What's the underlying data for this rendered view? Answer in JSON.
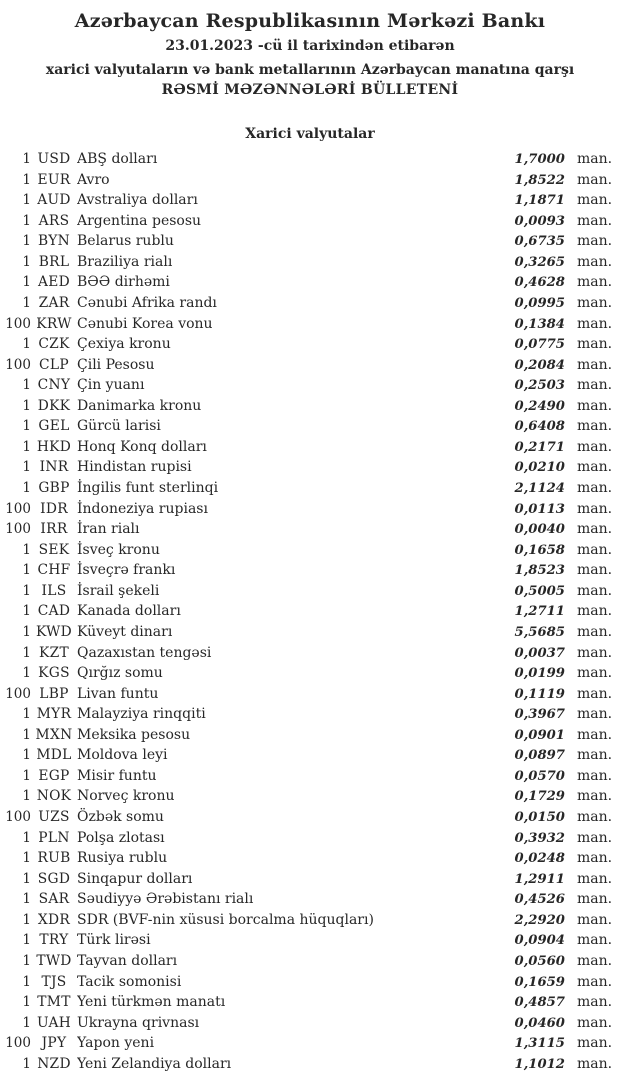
{
  "header": {
    "title": "Azərbaycan Respublikasının Mərkəzi Bankı",
    "date_line": "23.01.2023 -cü il tarixindən etibarən",
    "subtitle_line1": "xarici valyutaların və bank metallarının Azərbaycan manatına qarşı",
    "subtitle_line2": "RƏSMİ MƏZƏNNƏLƏRİ BÜLLETENİ"
  },
  "section": {
    "title": "Xarici valyutalar"
  },
  "table": {
    "unit_suffix": "man.",
    "rows": [
      {
        "qty": "1",
        "code": "USD",
        "name": "ABŞ dolları",
        "rate": "1,7000"
      },
      {
        "qty": "1",
        "code": "EUR",
        "name": "Avro",
        "rate": "1,8522"
      },
      {
        "qty": "1",
        "code": "AUD",
        "name": "Avstraliya dolları",
        "rate": "1,1871"
      },
      {
        "qty": "1",
        "code": "ARS",
        "name": "Argentina pesosu",
        "rate": "0,0093"
      },
      {
        "qty": "1",
        "code": "BYN",
        "name": "Belarus rublu",
        "rate": "0,6735"
      },
      {
        "qty": "1",
        "code": "BRL",
        "name": "Braziliya rialı",
        "rate": "0,3265"
      },
      {
        "qty": "1",
        "code": "AED",
        "name": "BƏƏ dirhəmi",
        "rate": "0,4628"
      },
      {
        "qty": "1",
        "code": "ZAR",
        "name": "Cənubi Afrika randı",
        "rate": "0,0995"
      },
      {
        "qty": "100",
        "code": "KRW",
        "name": "Cənubi Korea vonu",
        "rate": "0,1384"
      },
      {
        "qty": "1",
        "code": "CZK",
        "name": "Çexiya kronu",
        "rate": "0,0775"
      },
      {
        "qty": "100",
        "code": "CLP",
        "name": "Çili Pesosu",
        "rate": "0,2084"
      },
      {
        "qty": "1",
        "code": "CNY",
        "name": "Çin yuanı",
        "rate": "0,2503"
      },
      {
        "qty": "1",
        "code": "DKK",
        "name": "Danimarka kronu",
        "rate": "0,2490"
      },
      {
        "qty": "1",
        "code": "GEL",
        "name": "Gürcü larisi",
        "rate": "0,6408"
      },
      {
        "qty": "1",
        "code": "HKD",
        "name": "Honq Konq dolları",
        "rate": "0,2171"
      },
      {
        "qty": "1",
        "code": "INR",
        "name": "Hindistan rupisi",
        "rate": "0,0210"
      },
      {
        "qty": "1",
        "code": "GBP",
        "name": "İngilis funt sterlinqi",
        "rate": "2,1124"
      },
      {
        "qty": "100",
        "code": "IDR",
        "name": "İndoneziya rupiası",
        "rate": "0,0113"
      },
      {
        "qty": "100",
        "code": "IRR",
        "name": "İran rialı",
        "rate": "0,0040"
      },
      {
        "qty": "1",
        "code": "SEK",
        "name": "İsveç kronu",
        "rate": "0,1658"
      },
      {
        "qty": "1",
        "code": "CHF",
        "name": "İsveçrə frankı",
        "rate": "1,8523"
      },
      {
        "qty": "1",
        "code": "ILS",
        "name": "İsrail şekeli",
        "rate": "0,5005"
      },
      {
        "qty": "1",
        "code": "CAD",
        "name": "Kanada dolları",
        "rate": "1,2711"
      },
      {
        "qty": "1",
        "code": "KWD",
        "name": "Küveyt dinarı",
        "rate": "5,5685"
      },
      {
        "qty": "1",
        "code": "KZT",
        "name": "Qazaxıstan tengəsi",
        "rate": "0,0037"
      },
      {
        "qty": "1",
        "code": "KGS",
        "name": "Qırğız somu",
        "rate": "0,0199"
      },
      {
        "qty": "100",
        "code": "LBP",
        "name": "Livan funtu",
        "rate": "0,1119"
      },
      {
        "qty": "1",
        "code": "MYR",
        "name": "Malayziya rinqqiti",
        "rate": "0,3967"
      },
      {
        "qty": "1",
        "code": "MXN",
        "name": "Meksika pesosu",
        "rate": "0,0901"
      },
      {
        "qty": "1",
        "code": "MDL",
        "name": "Moldova leyi",
        "rate": "0,0897"
      },
      {
        "qty": "1",
        "code": "EGP",
        "name": "Misir funtu",
        "rate": "0,0570"
      },
      {
        "qty": "1",
        "code": "NOK",
        "name": "Norveç kronu",
        "rate": "0,1729"
      },
      {
        "qty": "100",
        "code": "UZS",
        "name": "Özbək somu",
        "rate": "0,0150"
      },
      {
        "qty": "1",
        "code": "PLN",
        "name": "Polşa zlotası",
        "rate": "0,3932"
      },
      {
        "qty": "1",
        "code": "RUB",
        "name": "Rusiya rublu",
        "rate": "0,0248"
      },
      {
        "qty": "1",
        "code": "SGD",
        "name": "Sinqapur dolları",
        "rate": "1,2911"
      },
      {
        "qty": "1",
        "code": "SAR",
        "name": "Səudiyyə Ərəbistanı rialı",
        "rate": "0,4526"
      },
      {
        "qty": "1",
        "code": "XDR",
        "name": "SDR (BVF-nin xüsusi borcalma hüquqları)",
        "rate": "2,2920"
      },
      {
        "qty": "1",
        "code": "TRY",
        "name": "Türk lirəsi",
        "rate": "0,0904"
      },
      {
        "qty": "1",
        "code": "TWD",
        "name": "Tayvan dolları",
        "rate": "0,0560"
      },
      {
        "qty": "1",
        "code": "TJS",
        "name": "Tacik somonisi",
        "rate": "0,1659"
      },
      {
        "qty": "1",
        "code": "TMT",
        "name": "Yeni türkmən manatı",
        "rate": "0,4857"
      },
      {
        "qty": "1",
        "code": "UAH",
        "name": "Ukrayna qrivnası",
        "rate": "0,0460"
      },
      {
        "qty": "100",
        "code": "JPY",
        "name": "Yapon yeni",
        "rate": "1,3115"
      },
      {
        "qty": "1",
        "code": "NZD",
        "name": "Yeni Zelandiya dolları",
        "rate": "1,1012"
      }
    ]
  },
  "colors": {
    "text": "#272727",
    "background": "#ffffff"
  }
}
